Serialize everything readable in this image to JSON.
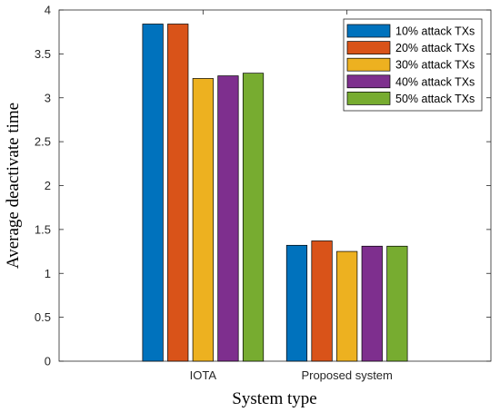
{
  "chart_data": {
    "type": "bar",
    "categories": [
      "IOTA",
      "Proposed system"
    ],
    "series": [
      {
        "name": "10% attack TXs",
        "values": [
          3.84,
          1.32
        ],
        "color": "#0072BD"
      },
      {
        "name": "20% attack TXs",
        "values": [
          3.84,
          1.37
        ],
        "color": "#D95319"
      },
      {
        "name": "30% attack TXs",
        "values": [
          3.22,
          1.25
        ],
        "color": "#EDB120"
      },
      {
        "name": "40% attack TXs",
        "values": [
          3.25,
          1.31
        ],
        "color": "#7E2F8E"
      },
      {
        "name": "50% attack TXs",
        "values": [
          3.28,
          1.31
        ],
        "color": "#77AC30"
      }
    ],
    "xlabel": "System type",
    "ylabel": "Average deactivate time",
    "ylim": [
      0,
      4
    ],
    "yticks": [
      "0",
      "0.5",
      "1",
      "1.5",
      "2",
      "2.5",
      "3",
      "3.5",
      "4"
    ],
    "grid": false,
    "legend_position": "top-right"
  }
}
